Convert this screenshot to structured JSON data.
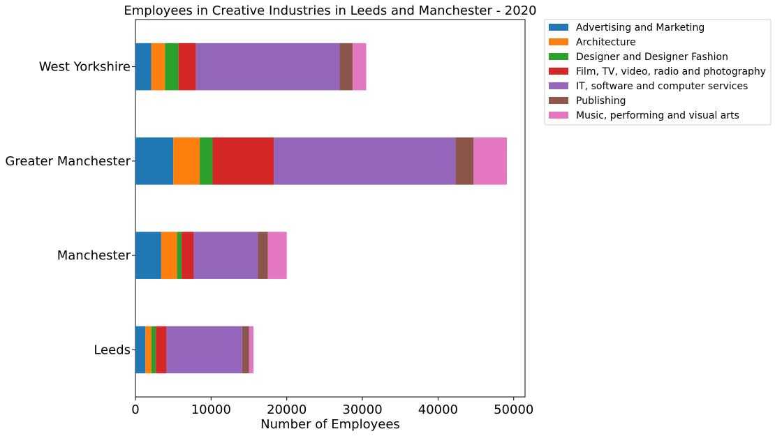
{
  "chart_data": {
    "type": "bar",
    "orientation": "horizontal",
    "stacked": true,
    "title": "Employees in Creative Industries in Leeds and Manchester - 2020",
    "xlabel": "Number of Employees",
    "ylabel": "",
    "xlim": [
      0,
      51500
    ],
    "xticks": [
      0,
      10000,
      20000,
      30000,
      40000,
      50000
    ],
    "xtick_labels": [
      "0",
      "10000",
      "20000",
      "30000",
      "40000",
      "50000"
    ],
    "categories": [
      "Leeds",
      "Manchester",
      "Greater Manchester",
      "West Yorkshire"
    ],
    "grid": false,
    "legend_position": "outside-top-right",
    "series": [
      {
        "name": "Advertising and Marketing",
        "color": "#1f77b4",
        "values": [
          1300,
          3400,
          5000,
          2100
        ]
      },
      {
        "name": "Architecture",
        "color": "#ff7f0e",
        "values": [
          800,
          2100,
          3500,
          1800
        ]
      },
      {
        "name": "Designer and Designer Fashion",
        "color": "#2ca02c",
        "values": [
          600,
          600,
          1700,
          1800
        ]
      },
      {
        "name": "Film, TV, video, radio and photography",
        "color": "#d62728",
        "values": [
          1400,
          1600,
          8100,
          2300
        ]
      },
      {
        "name": "IT, software and computer services",
        "color": "#9467bd",
        "values": [
          10000,
          8500,
          24000,
          19000
        ]
      },
      {
        "name": "Publishing",
        "color": "#8c564b",
        "values": [
          900,
          1300,
          2400,
          1700
        ]
      },
      {
        "name": "Music, performing and visual arts",
        "color": "#e377c2",
        "values": [
          600,
          2500,
          4400,
          1800
        ]
      }
    ]
  }
}
